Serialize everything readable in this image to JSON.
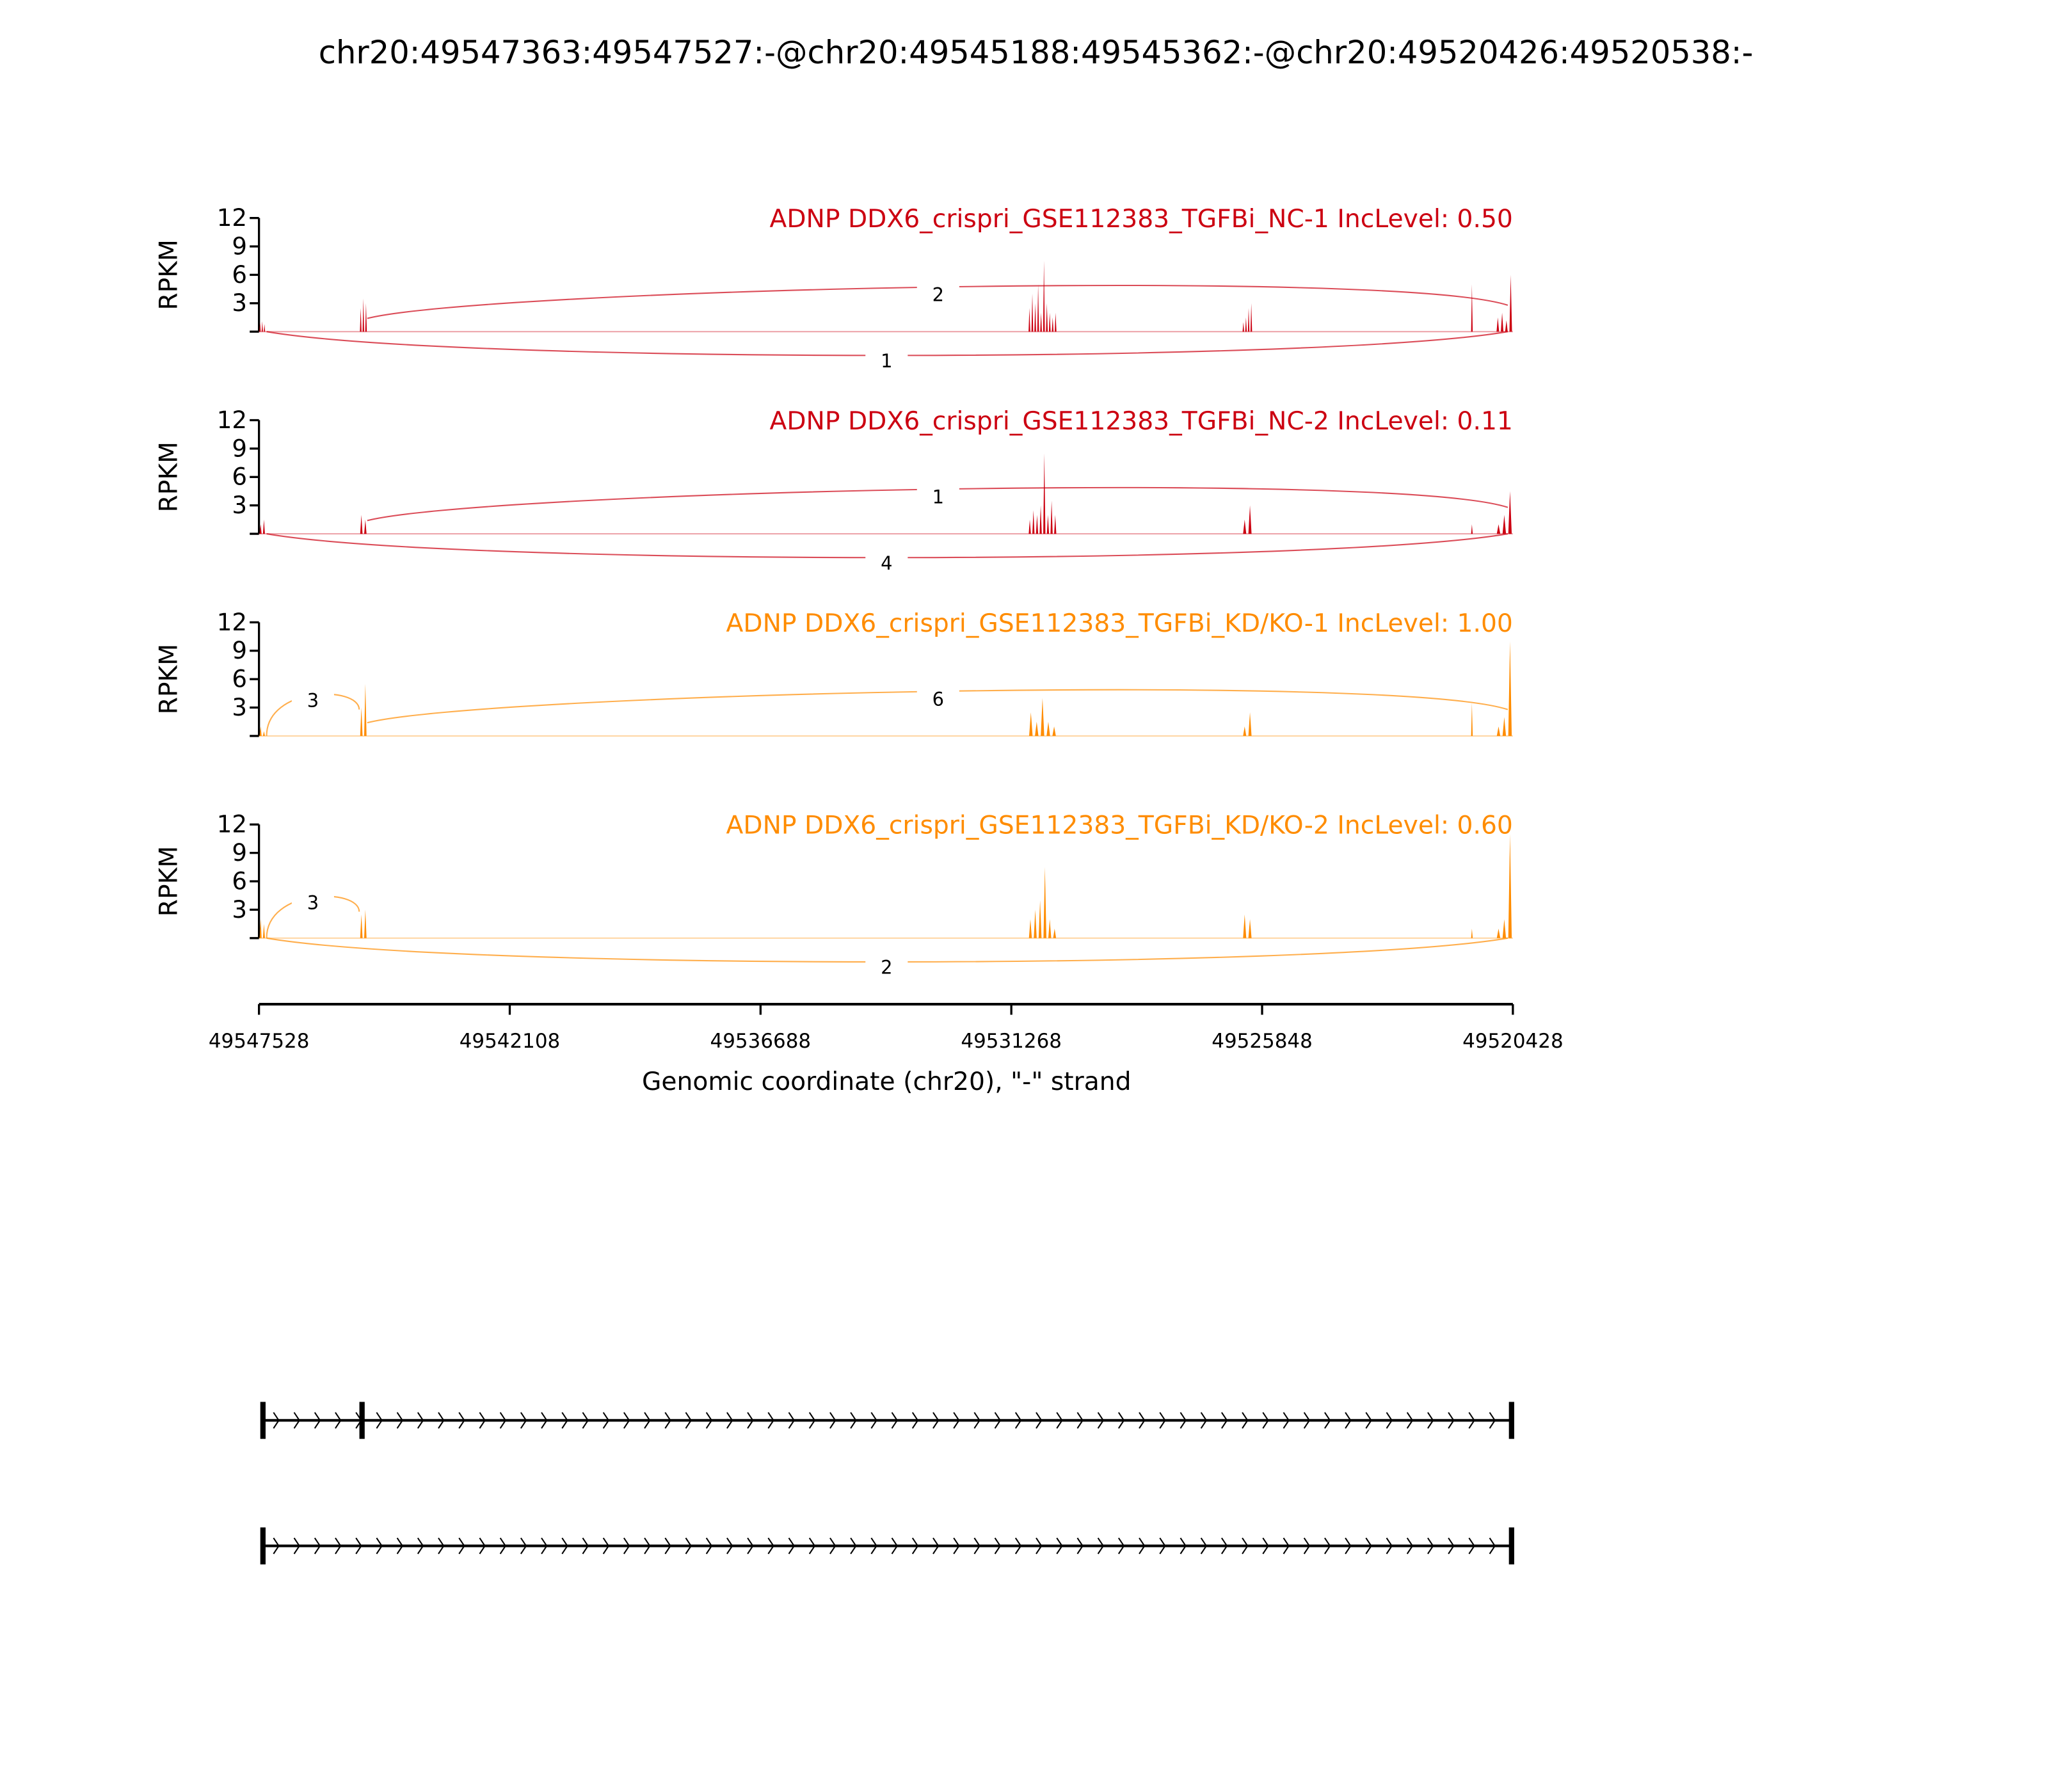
{
  "chart_data": {
    "type": "area",
    "title": "chr20:49547363:49547527:-@chr20:49545188:49545362:-@chr20:49520426:49520538:-",
    "xlabel": "Genomic coordinate (chr20), \"-\" strand",
    "ylabel": "RPKM",
    "xlim": [
      49547528,
      49520428
    ],
    "ylim": [
      0,
      12
    ],
    "x_ticks": [
      49547528,
      49542108,
      49536688,
      49531268,
      49525848,
      49520428
    ],
    "y_ticks": [
      3,
      6,
      9,
      12
    ],
    "grid": false,
    "panels": [
      {
        "title": "ADNP DDX6_crispri_GSE112383_TGFBi_NC-1 IncLevel: 0.50",
        "color": "#CC0011",
        "coverage": [
          {
            "start": 49547528,
            "end": 49547385,
            "values": [
              1,
              1.1,
              0.8
            ]
          },
          {
            "start": 49545358,
            "end": 49545186,
            "values": [
              2.5,
              3.5,
              3
            ]
          },
          {
            "start": 49530908,
            "end": 49530280,
            "values": [
              2.5,
              4,
              3,
              5,
              2,
              7.5,
              3,
              2,
              1.5,
              2
            ]
          },
          {
            "start": 49526282,
            "end": 49526053,
            "values": [
              1,
              1.5,
              2.5,
              3
            ]
          },
          {
            "start": 49521342,
            "end": 49521285,
            "values": [
              5
            ]
          },
          {
            "start": 49520800,
            "end": 49520428,
            "values": [
              1.5,
              2,
              1.2,
              6
            ]
          }
        ],
        "junctions": [
          {
            "from": 49545188,
            "to": 49520538,
            "count": "2",
            "side": "above"
          },
          {
            "from": 49547363,
            "to": 49520538,
            "count": "1",
            "side": "below"
          }
        ]
      },
      {
        "title": "ADNP DDX6_crispri_GSE112383_TGFBi_NC-2 IncLevel: 0.11",
        "color": "#CC0011",
        "coverage": [
          {
            "start": 49547528,
            "end": 49547385,
            "values": [
              1,
              1.5
            ]
          },
          {
            "start": 49545358,
            "end": 49545186,
            "values": [
              2,
              1.5
            ]
          },
          {
            "start": 49530908,
            "end": 49530280,
            "values": [
              1.5,
              2.5,
              2,
              3,
              8.5,
              2,
              3.5,
              2
            ]
          },
          {
            "start": 49526282,
            "end": 49526053,
            "values": [
              1.5,
              3
            ]
          },
          {
            "start": 49521342,
            "end": 49521285,
            "values": [
              1
            ]
          },
          {
            "start": 49520800,
            "end": 49520428,
            "values": [
              1,
              2,
              4.5
            ]
          }
        ],
        "junctions": [
          {
            "from": 49545188,
            "to": 49520538,
            "count": "1",
            "side": "above"
          },
          {
            "from": 49547363,
            "to": 49520538,
            "count": "4",
            "side": "below"
          }
        ]
      },
      {
        "title": "ADNP DDX6_crispri_GSE112383_TGFBi_KD/KO-1 IncLevel: 1.00",
        "color": "#FF8C00",
        "coverage": [
          {
            "start": 49547528,
            "end": 49547385,
            "values": [
              1,
              0.5
            ]
          },
          {
            "start": 49545358,
            "end": 49545186,
            "values": [
              3,
              5.5
            ]
          },
          {
            "start": 49530908,
            "end": 49530280,
            "values": [
              2.5,
              1.5,
              4,
              1.5,
              1
            ]
          },
          {
            "start": 49526282,
            "end": 49526053,
            "values": [
              1,
              2.5
            ]
          },
          {
            "start": 49521342,
            "end": 49521285,
            "values": [
              3.5
            ]
          },
          {
            "start": 49520800,
            "end": 49520428,
            "values": [
              1,
              2,
              10
            ]
          }
        ],
        "junctions": [
          {
            "from": 49547363,
            "to": 49545362,
            "count": "3",
            "side": "above"
          },
          {
            "from": 49545188,
            "to": 49520538,
            "count": "6",
            "side": "above"
          }
        ]
      },
      {
        "title": "ADNP DDX6_crispri_GSE112383_TGFBi_KD/KO-2 IncLevel: 0.60",
        "color": "#FF8C00",
        "coverage": [
          {
            "start": 49547528,
            "end": 49547385,
            "values": [
              2,
              1.5
            ]
          },
          {
            "start": 49545358,
            "end": 49545186,
            "values": [
              2.5,
              3
            ]
          },
          {
            "start": 49530908,
            "end": 49530280,
            "values": [
              2,
              3,
              4,
              7.5,
              2,
              1
            ]
          },
          {
            "start": 49526282,
            "end": 49526053,
            "values": [
              2.5,
              2
            ]
          },
          {
            "start": 49521342,
            "end": 49521285,
            "values": [
              1
            ]
          },
          {
            "start": 49520800,
            "end": 49520428,
            "values": [
              1,
              2,
              11
            ]
          }
        ],
        "junctions": [
          {
            "from": 49547363,
            "to": 49545362,
            "count": "3",
            "side": "above"
          },
          {
            "from": 49547363,
            "to": 49520538,
            "count": "2",
            "side": "below"
          }
        ]
      }
    ],
    "gene_models": [
      {
        "exons": [
          [
            49547527,
            49547363
          ],
          [
            49545362,
            49545188
          ],
          [
            49520538,
            49520426
          ]
        ],
        "strand": "-"
      },
      {
        "exons": [
          [
            49547527,
            49547363
          ],
          [
            49520538,
            49520426
          ]
        ],
        "strand": "-"
      }
    ]
  }
}
